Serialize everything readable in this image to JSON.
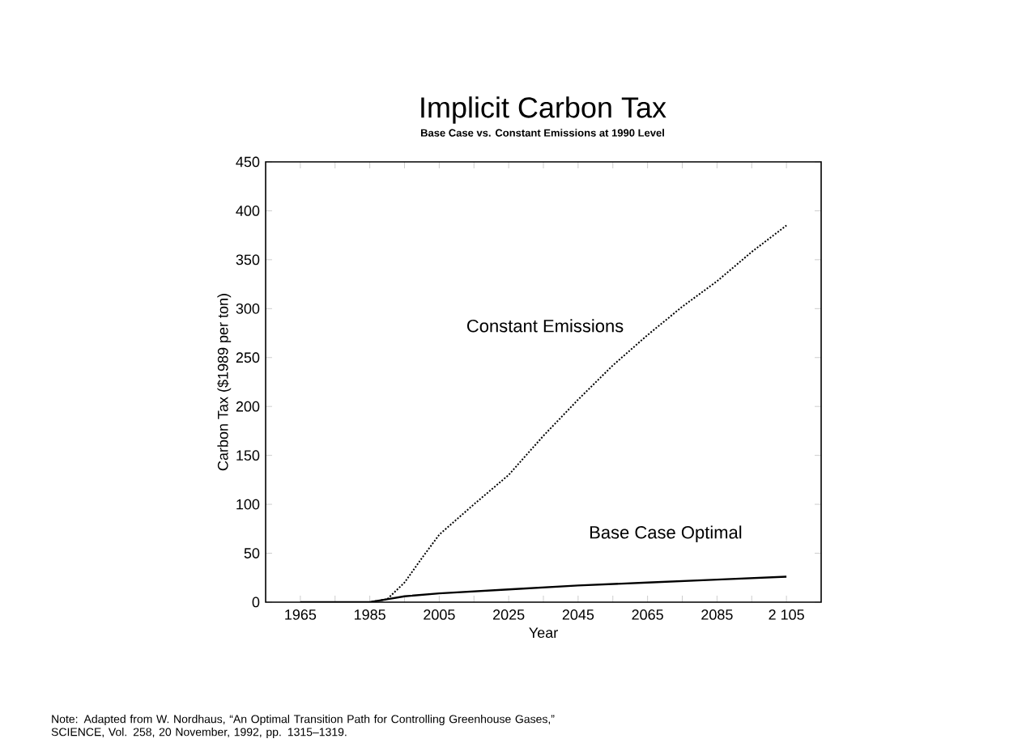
{
  "chart_data": {
    "type": "line",
    "title": "Implicit Carbon Tax",
    "subtitle": "Base Case vs. Constant Emissions at 1990 Level",
    "xlabel": "Year",
    "ylabel": "Carbon Tax ($1989 per ton)",
    "xlim": [
      1955,
      2115
    ],
    "ylim": [
      0,
      450
    ],
    "xticks": [
      1965,
      {
        "value": 1975,
        "label": null
      },
      1985,
      {
        "value": 1995,
        "label": null
      },
      2005,
      {
        "value": 2015,
        "label": null
      },
      2025,
      {
        "value": 2035,
        "label": null
      },
      2045,
      {
        "value": 2055,
        "label": null
      },
      2065,
      {
        "value": 2075,
        "label": null
      },
      2085,
      {
        "value": 2095,
        "label": null
      },
      {
        "value": 2105,
        "label": "2 105"
      }
    ],
    "yticks": [
      0,
      50,
      100,
      150,
      200,
      250,
      300,
      350,
      400,
      450
    ],
    "grid": false,
    "marker": "none",
    "series": [
      {
        "name": "Constant Emissions",
        "color": "#000000",
        "line_style": "dotted",
        "x": [
          1965,
          1975,
          1985,
          1990,
          1995,
          2000,
          2005,
          2015,
          2025,
          2035,
          2045,
          2055,
          2065,
          2075,
          2085,
          2095,
          2105
        ],
        "values": [
          0,
          0,
          0,
          3,
          20,
          45,
          69,
          100,
          130,
          170,
          207,
          242,
          273,
          302,
          328,
          358,
          385
        ]
      },
      {
        "name": "Base Case Optimal",
        "color": "#000000",
        "line_style": "solid",
        "x": [
          1965,
          1975,
          1985,
          1990,
          1995,
          2005,
          2025,
          2045,
          2065,
          2085,
          2105
        ],
        "values": [
          0,
          0,
          0,
          3,
          6,
          9,
          13,
          17,
          20,
          23,
          26
        ]
      }
    ],
    "annotations": [
      "Note:  Adapted from W. Nordhaus, “An Optimal Transition Path for Controlling Greenhouse Gases,” SCIENCE, Vol. 258, 20 November, 1992, pp. 1315–1319."
    ]
  }
}
